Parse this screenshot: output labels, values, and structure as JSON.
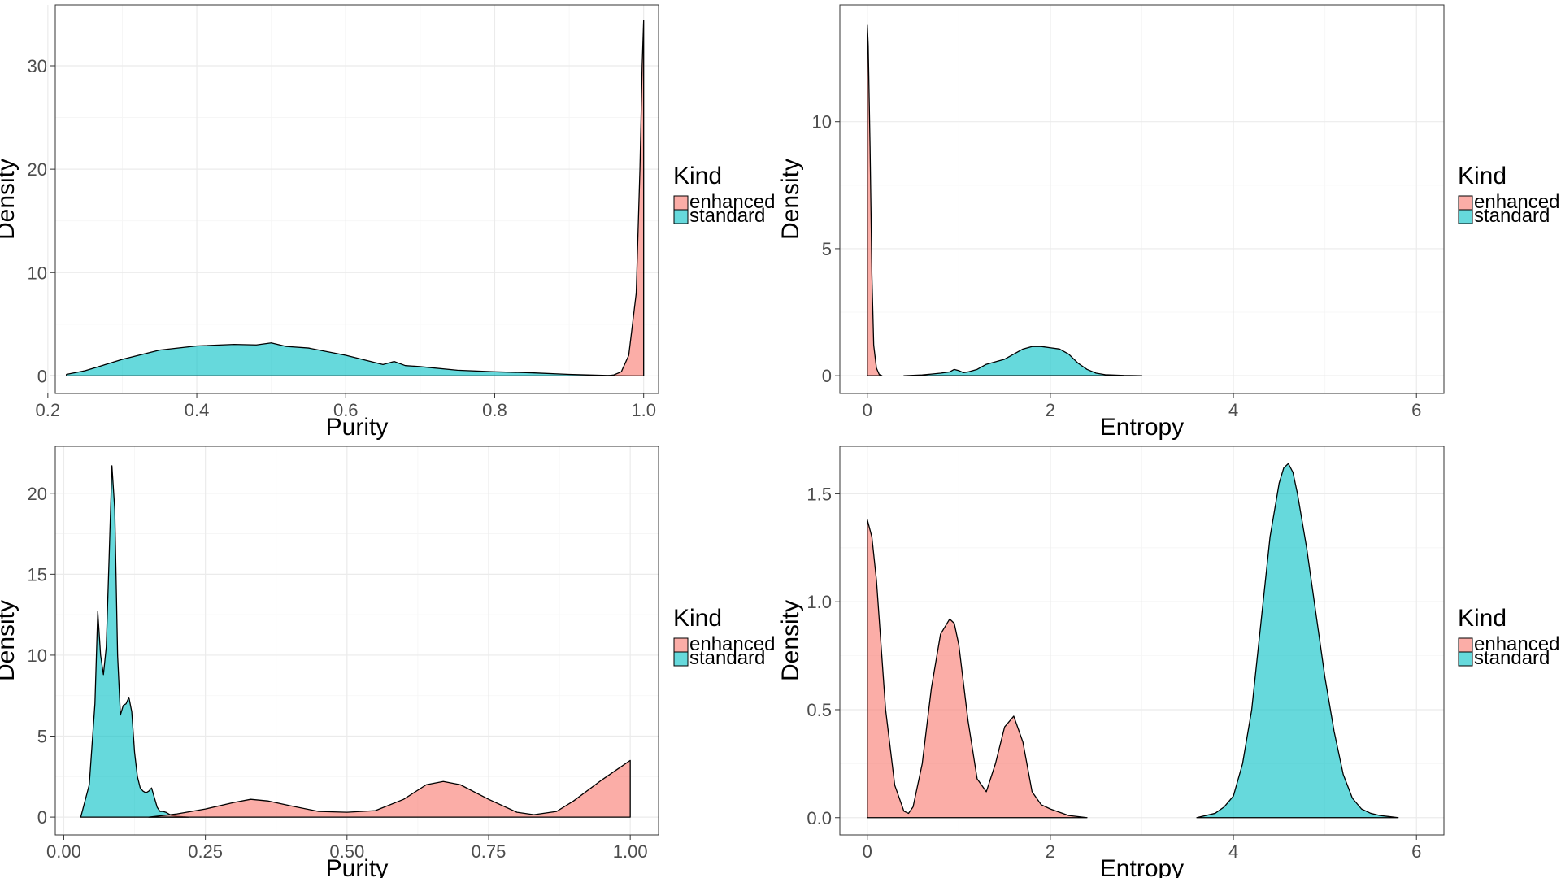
{
  "colors": {
    "enhanced": "#F8766D",
    "standard": "#00BFC4"
  },
  "chart_data": [
    {
      "type": "area",
      "xlabel": "Purity",
      "ylabel": "Density",
      "xlim": [
        0.21,
        1.02
      ],
      "ylim": [
        -1.7,
        35.9
      ],
      "xticks": [
        0.2,
        0.4,
        0.6,
        0.8,
        1.0
      ],
      "xtick_labels": [
        "0.2",
        "0.4",
        "0.6",
        "0.8",
        "1.0"
      ],
      "yticks": [
        0,
        10,
        20,
        30
      ],
      "ytick_labels": [
        "0",
        "10",
        "20",
        "30"
      ],
      "grid": true,
      "legend": {
        "title": "Kind",
        "position": "right",
        "entries": [
          "enhanced",
          "standard"
        ]
      },
      "series": [
        {
          "name": "enhanced",
          "color": "#F8766D",
          "x": [
            0.95,
            0.96,
            0.97,
            0.98,
            0.99,
            0.995,
            0.998,
            1.0
          ],
          "y": [
            0,
            0.1,
            0.4,
            2.0,
            8.0,
            20.0,
            30.0,
            34.4
          ]
        },
        {
          "name": "standard",
          "color": "#00BFC4",
          "x": [
            0.225,
            0.25,
            0.3,
            0.35,
            0.4,
            0.45,
            0.48,
            0.5,
            0.52,
            0.55,
            0.6,
            0.65,
            0.665,
            0.68,
            0.7,
            0.75,
            0.8,
            0.85,
            0.9,
            0.95,
            0.98,
            1.0
          ],
          "y": [
            0.15,
            0.5,
            1.6,
            2.5,
            2.9,
            3.05,
            3.0,
            3.2,
            2.85,
            2.7,
            2.0,
            1.1,
            1.4,
            1.0,
            0.9,
            0.55,
            0.4,
            0.3,
            0.15,
            0.05,
            0.01,
            0
          ]
        }
      ]
    },
    {
      "type": "area",
      "xlabel": "Entropy",
      "ylabel": "Density",
      "xlim": [
        -0.3,
        6.3
      ],
      "ylim": [
        -0.7,
        14.6
      ],
      "xticks": [
        0,
        2,
        4,
        6
      ],
      "xtick_labels": [
        "0",
        "2",
        "4",
        "6"
      ],
      "yticks": [
        0,
        5,
        10
      ],
      "ytick_labels": [
        "0",
        "5",
        "10"
      ],
      "grid": true,
      "legend": {
        "title": "Kind",
        "position": "right",
        "entries": [
          "enhanced",
          "standard"
        ]
      },
      "series": [
        {
          "name": "enhanced",
          "color": "#F8766D",
          "x": [
            0,
            0.01,
            0.03,
            0.05,
            0.07,
            0.1,
            0.13,
            0.16
          ],
          "y": [
            13.8,
            13.0,
            9.0,
            4.0,
            1.2,
            0.3,
            0.05,
            0
          ]
        },
        {
          "name": "standard",
          "color": "#00BFC4",
          "x": [
            0.4,
            0.6,
            0.8,
            0.9,
            0.95,
            1.0,
            1.05,
            1.1,
            1.2,
            1.3,
            1.4,
            1.5,
            1.6,
            1.7,
            1.8,
            1.9,
            2.0,
            2.1,
            2.2,
            2.3,
            2.4,
            2.5,
            2.6,
            2.8,
            3.0
          ],
          "y": [
            0,
            0.03,
            0.1,
            0.15,
            0.25,
            0.2,
            0.12,
            0.15,
            0.25,
            0.45,
            0.55,
            0.65,
            0.85,
            1.05,
            1.15,
            1.15,
            1.1,
            1.05,
            0.85,
            0.5,
            0.25,
            0.1,
            0.04,
            0.01,
            0
          ]
        }
      ]
    },
    {
      "type": "area",
      "xlabel": "Purity",
      "ylabel": "Density",
      "xlim": [
        -0.015,
        1.05
      ],
      "ylim": [
        -1.1,
        22.9
      ],
      "xticks": [
        0,
        0.25,
        0.5,
        0.75,
        1.0
      ],
      "xtick_labels": [
        "0.00",
        "0.25",
        "0.50",
        "0.75",
        "1.00"
      ],
      "yticks": [
        0,
        5,
        10,
        15,
        20
      ],
      "ytick_labels": [
        "0",
        "5",
        "10",
        "15",
        "20"
      ],
      "grid": true,
      "legend": {
        "title": "Kind",
        "position": "right",
        "entries": [
          "enhanced",
          "standard"
        ]
      },
      "series": [
        {
          "name": "enhanced",
          "color": "#F8766D",
          "x": [
            0.15,
            0.2,
            0.25,
            0.3,
            0.33,
            0.36,
            0.4,
            0.45,
            0.5,
            0.55,
            0.6,
            0.64,
            0.67,
            0.7,
            0.75,
            0.8,
            0.83,
            0.87,
            0.9,
            0.95,
            1.0
          ],
          "y": [
            0,
            0.2,
            0.5,
            0.9,
            1.1,
            1.0,
            0.7,
            0.35,
            0.3,
            0.4,
            1.1,
            2.0,
            2.2,
            2.0,
            1.1,
            0.3,
            0.15,
            0.35,
            1.0,
            2.3,
            3.5
          ]
        },
        {
          "name": "standard",
          "color": "#00BFC4",
          "x": [
            0.03,
            0.045,
            0.055,
            0.06,
            0.065,
            0.07,
            0.075,
            0.08,
            0.085,
            0.09,
            0.095,
            0.1,
            0.105,
            0.11,
            0.115,
            0.12,
            0.125,
            0.13,
            0.135,
            0.14,
            0.145,
            0.15,
            0.155,
            0.16,
            0.165,
            0.17,
            0.175,
            0.18,
            0.19,
            0.2,
            0.21,
            0.22
          ],
          "y": [
            0,
            2.0,
            7.0,
            12.7,
            10.0,
            8.8,
            10.5,
            16.0,
            21.7,
            19.0,
            10.0,
            6.3,
            6.9,
            7.0,
            7.4,
            6.5,
            4.0,
            2.5,
            1.8,
            1.6,
            1.5,
            1.6,
            1.8,
            1.2,
            0.6,
            0.35,
            0.35,
            0.3,
            0.1,
            0.05,
            0.02,
            0
          ]
        }
      ]
    },
    {
      "type": "area",
      "xlabel": "Entropy",
      "ylabel": "Density",
      "xlim": [
        -0.3,
        6.3
      ],
      "ylim": [
        -0.08,
        1.72
      ],
      "xticks": [
        0,
        2,
        4,
        6
      ],
      "xtick_labels": [
        "0",
        "2",
        "4",
        "6"
      ],
      "yticks": [
        0,
        0.5,
        1.0,
        1.5
      ],
      "ytick_labels": [
        "0.0",
        "0.5",
        "1.0",
        "1.5"
      ],
      "grid": true,
      "legend": {
        "title": "Kind",
        "position": "right",
        "entries": [
          "enhanced",
          "standard"
        ]
      },
      "series": [
        {
          "name": "enhanced",
          "color": "#F8766D",
          "x": [
            0,
            0.05,
            0.1,
            0.15,
            0.2,
            0.3,
            0.4,
            0.45,
            0.5,
            0.6,
            0.7,
            0.8,
            0.9,
            0.95,
            1.0,
            1.1,
            1.2,
            1.3,
            1.4,
            1.5,
            1.6,
            1.7,
            1.8,
            1.9,
            2.0,
            2.2,
            2.4
          ],
          "y": [
            1.38,
            1.3,
            1.1,
            0.8,
            0.5,
            0.15,
            0.03,
            0.02,
            0.05,
            0.25,
            0.6,
            0.85,
            0.92,
            0.9,
            0.8,
            0.45,
            0.18,
            0.12,
            0.25,
            0.42,
            0.47,
            0.35,
            0.12,
            0.06,
            0.04,
            0.01,
            0
          ]
        },
        {
          "name": "standard",
          "color": "#00BFC4",
          "x": [
            3.6,
            3.8,
            3.9,
            4.0,
            4.1,
            4.2,
            4.3,
            4.4,
            4.5,
            4.55,
            4.6,
            4.65,
            4.7,
            4.8,
            4.9,
            5.0,
            5.1,
            5.2,
            5.3,
            5.4,
            5.5,
            5.6,
            5.7,
            5.8
          ],
          "y": [
            0,
            0.02,
            0.05,
            0.1,
            0.25,
            0.5,
            0.9,
            1.3,
            1.55,
            1.62,
            1.64,
            1.6,
            1.5,
            1.25,
            0.95,
            0.65,
            0.4,
            0.2,
            0.09,
            0.04,
            0.02,
            0.01,
            0.005,
            0
          ]
        }
      ]
    }
  ]
}
